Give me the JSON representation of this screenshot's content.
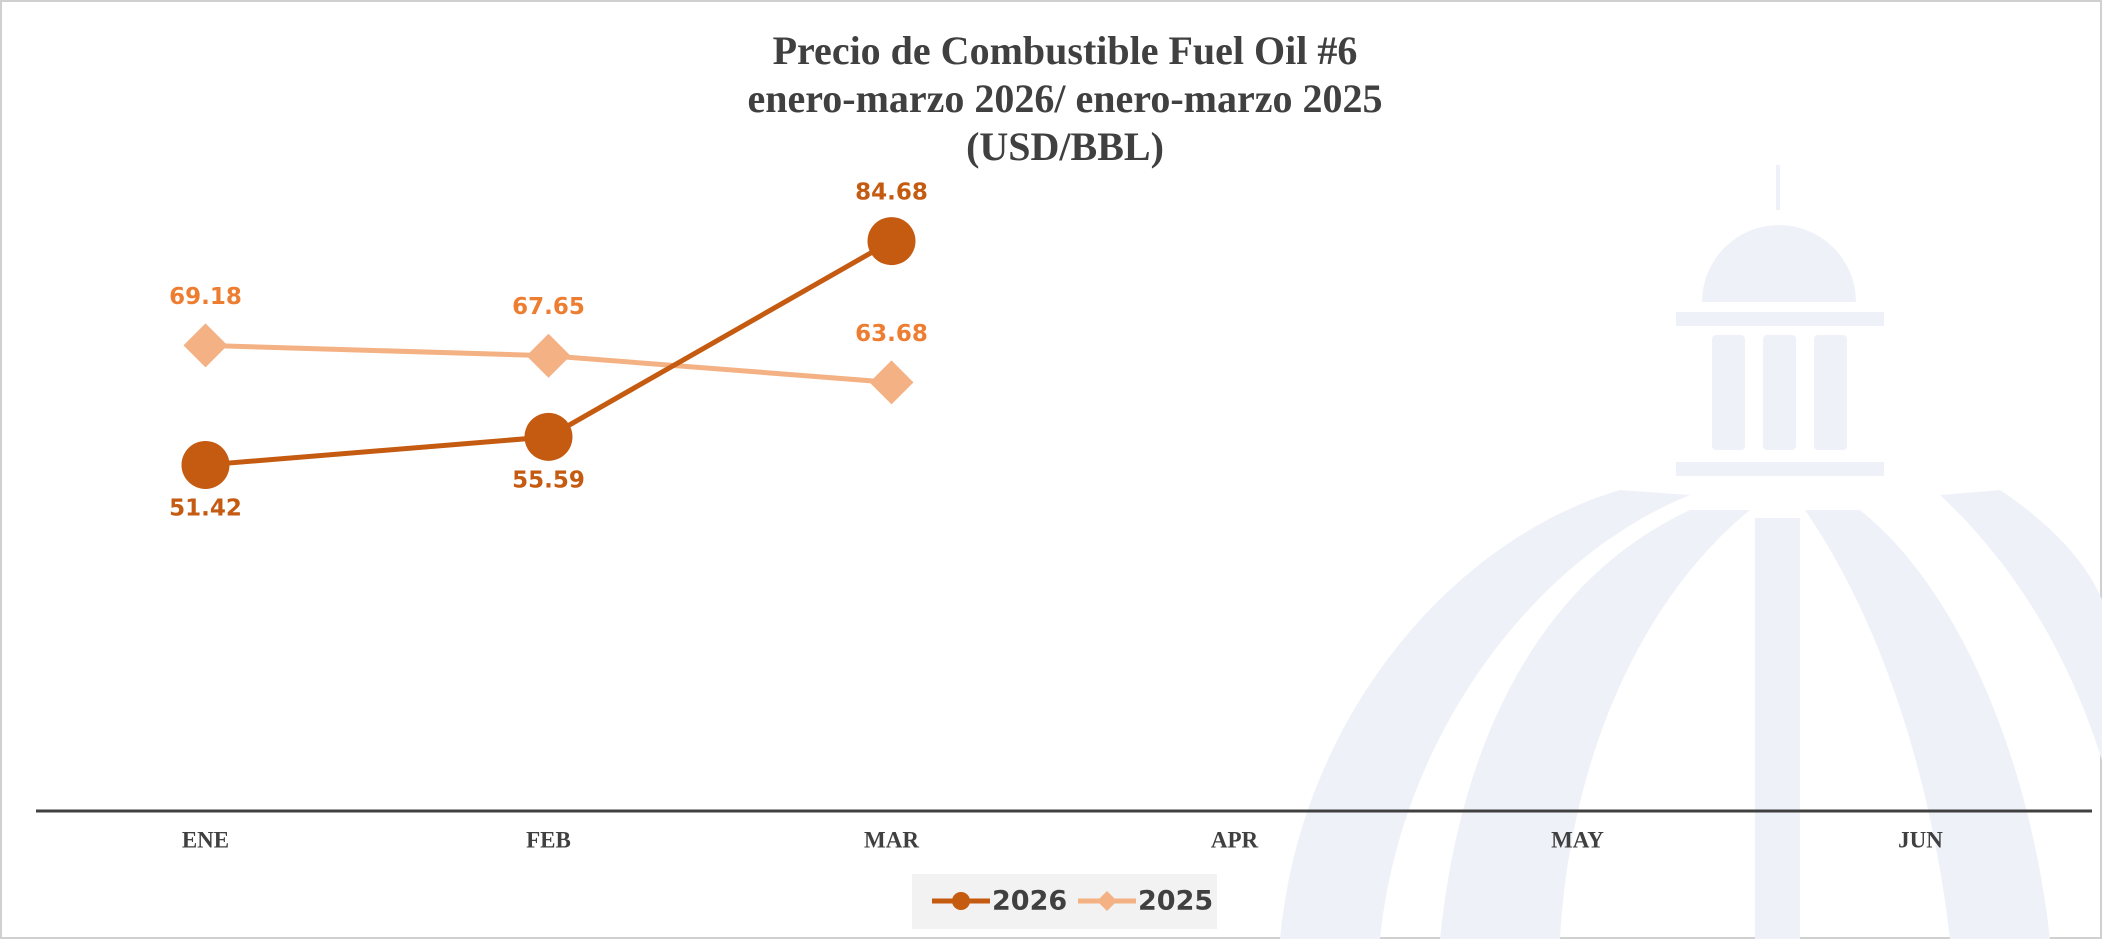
{
  "chart_data": {
    "type": "line",
    "title": [
      "Precio de Combustible Fuel Oil #6",
      "enero-marzo 2026/ enero-marzo 2025",
      "(USD/BBL)"
    ],
    "categories": [
      "ENE",
      "FEB",
      "MAR",
      "APR",
      "MAY",
      "JUN"
    ],
    "series": [
      {
        "name": "2026",
        "color": "#c55a11",
        "marker": "circle",
        "values": [
          51.42,
          55.59,
          84.68,
          null,
          null,
          null
        ]
      },
      {
        "name": "2025",
        "color": "#f4b183",
        "label_color": "#ed7d31",
        "marker": "diamond",
        "values": [
          69.18,
          67.65,
          63.68,
          null,
          null,
          null
        ]
      }
    ],
    "ylim": [
      0,
      100
    ],
    "legend": "bottom"
  }
}
